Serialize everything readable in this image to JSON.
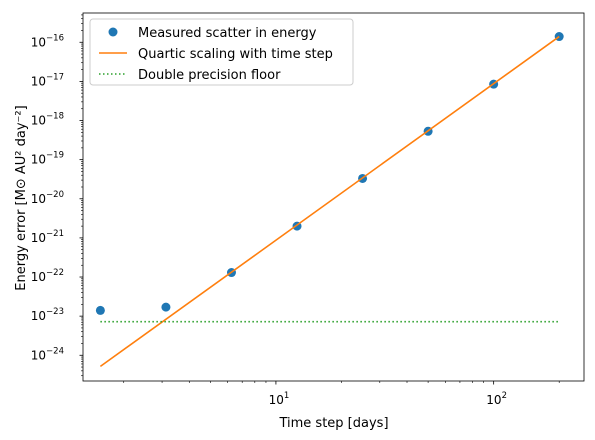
{
  "chart_data": {
    "type": "scatter",
    "xlabel": "Time step [days]",
    "ylabel": "Energy error [M⊙ AU² day⁻²]",
    "xscale": "log",
    "yscale": "log",
    "xlim": [
      1.3,
      260
    ],
    "ylim": [
      2.2e-25,
      5.6e-16
    ],
    "grid": false,
    "legend_position": "top-left",
    "x_ticks": [
      {
        "value": 10,
        "base": "10",
        "exp": "1"
      },
      {
        "value": 100,
        "base": "10",
        "exp": "2"
      }
    ],
    "y_ticks": [
      {
        "value": 1e-24,
        "base": "10",
        "exp": "−24"
      },
      {
        "value": 1e-23,
        "base": "10",
        "exp": "−23"
      },
      {
        "value": 1e-22,
        "base": "10",
        "exp": "−22"
      },
      {
        "value": 1e-21,
        "base": "10",
        "exp": "−21"
      },
      {
        "value": 1e-20,
        "base": "10",
        "exp": "−20"
      },
      {
        "value": 1e-19,
        "base": "10",
        "exp": "−19"
      },
      {
        "value": 1e-18,
        "base": "10",
        "exp": "−18"
      },
      {
        "value": 1e-17,
        "base": "10",
        "exp": "−17"
      },
      {
        "value": 1e-16,
        "base": "10",
        "exp": "−16"
      }
    ],
    "series": [
      {
        "name": "Measured scatter in energy",
        "kind": "scatter",
        "color": "#1f77b4",
        "x": [
          1.5625,
          3.125,
          6.25,
          12.5,
          25,
          50,
          100,
          200
        ],
        "y": [
          1.4e-23,
          1.7e-23,
          1.3e-22,
          2e-21,
          3.3e-20,
          5.3e-19,
          8.5e-18,
          1.4e-16
        ]
      },
      {
        "name": "Quartic scaling with time step",
        "kind": "line",
        "color": "#ff7f0e",
        "x": [
          1.5625,
          200
        ],
        "y": [
          5.2e-25,
          1.4e-16
        ]
      },
      {
        "name": "Double precision floor",
        "kind": "dotted-line",
        "color": "#2ca02c",
        "x": [
          1.5625,
          200
        ],
        "y": [
          7.2e-24,
          7.2e-24
        ]
      }
    ]
  }
}
